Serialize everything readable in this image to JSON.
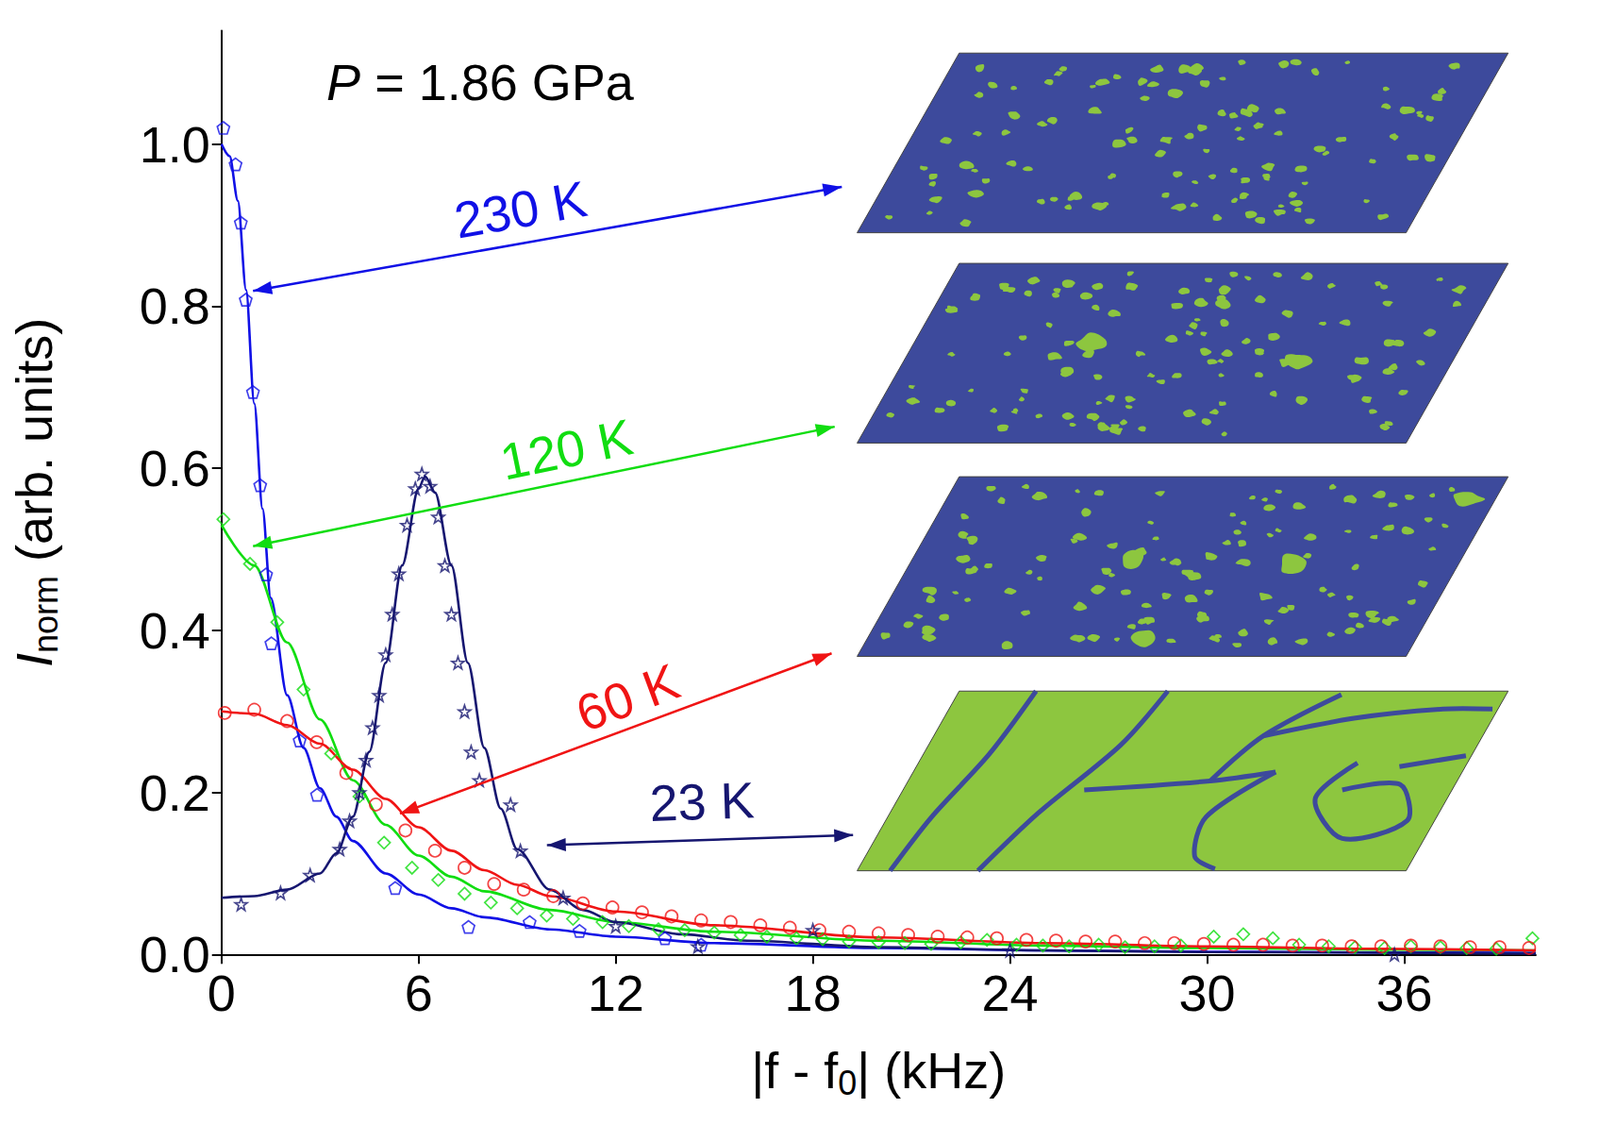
{
  "chart_data": {
    "type": "scatter",
    "title": "P = 1.86 GPa",
    "xlabel": {
      "text": "|f - f",
      "sub": "0",
      "rest": "| (kHz)"
    },
    "ylabel": {
      "text": "I",
      "sub": "norm",
      "rest": " (arb. units)"
    },
    "xlim": [
      0,
      40
    ],
    "ylim": [
      0,
      1.14
    ],
    "xticks": [
      0,
      6,
      12,
      18,
      24,
      30,
      36
    ],
    "yticks": [
      {
        "value": 0,
        "label": "0.0"
      },
      {
        "value": 0.2,
        "label": "0.2"
      },
      {
        "value": 0.4,
        "label": "0.4"
      },
      {
        "value": 0.6,
        "label": "0.6"
      },
      {
        "value": 0.8,
        "label": "0.8"
      },
      {
        "value": 1,
        "label": "1.0"
      }
    ],
    "grid": false,
    "series": [
      {
        "name": "230 K",
        "color": "#1010e6",
        "marker": "pentagon",
        "line_style": "solid",
        "x": [
          0.06,
          0.43,
          0.59,
          0.74,
          0.96,
          1.18,
          1.36,
          1.52,
          2.38,
          2.91,
          5.29,
          7.52,
          9.38,
          10.9,
          13.5,
          14.6
        ],
        "values": [
          1.02,
          0.975,
          0.903,
          0.808,
          0.694,
          0.579,
          0.469,
          0.384,
          0.264,
          0.197,
          0.082,
          0.034,
          0.04,
          0.029,
          0.02,
          0.012
        ],
        "fit_x": [
          0,
          0.25,
          0.5,
          0.75,
          1,
          1.25,
          1.5,
          2,
          2.5,
          3,
          3.5,
          4,
          5,
          6,
          7,
          8,
          10,
          12,
          15,
          20,
          25,
          30,
          35,
          40
        ],
        "fit_values": [
          1.0,
          0.985,
          0.93,
          0.82,
          0.68,
          0.55,
          0.44,
          0.32,
          0.255,
          0.205,
          0.17,
          0.14,
          0.1,
          0.074,
          0.057,
          0.046,
          0.031,
          0.022,
          0.014,
          0.008,
          0.005,
          0.0035,
          0.0025,
          0.002
        ]
      },
      {
        "name": "120 K",
        "color": "#11dd11",
        "marker": "diamond",
        "line_style": "solid",
        "x": [
          0.06,
          0.87,
          1.7,
          2.5,
          3.34,
          4.2,
          4.95,
          5.8,
          6.6,
          7.4,
          8.2,
          9.0,
          9.9,
          10.7,
          11.6,
          12.4,
          13.3,
          14.1,
          15.0,
          15.8,
          16.6,
          17.5,
          18.3,
          19.1,
          20.0,
          20.8,
          21.6,
          22.5,
          23.3,
          24.2,
          25.0,
          25.8,
          26.7,
          27.5,
          28.4,
          29.2,
          30.2,
          31.1,
          32.0,
          32.8,
          33.7,
          34.5,
          35.4,
          36.2,
          37.1,
          37.9,
          38.8,
          39.9
        ],
        "values": [
          0.537,
          0.482,
          0.41,
          0.327,
          0.248,
          0.195,
          0.138,
          0.107,
          0.092,
          0.075,
          0.064,
          0.057,
          0.048,
          0.044,
          0.04,
          0.035,
          0.031,
          0.03,
          0.027,
          0.024,
          0.022,
          0.02,
          0.019,
          0.016,
          0.015,
          0.014,
          0.013,
          0.015,
          0.018,
          0.012,
          0.011,
          0.01,
          0.012,
          0.009,
          0.01,
          0.011,
          0.022,
          0.025,
          0.02,
          0.012,
          0.01,
          0.009,
          0.008,
          0.01,
          0.009,
          0.008,
          0.007,
          0.02
        ],
        "fit_x": [
          0,
          1,
          2,
          3,
          4,
          5,
          6,
          7,
          8,
          10,
          12,
          15,
          20,
          25,
          30,
          35,
          40
        ],
        "fit_values": [
          0.53,
          0.48,
          0.385,
          0.29,
          0.215,
          0.16,
          0.122,
          0.096,
          0.078,
          0.055,
          0.04,
          0.028,
          0.017,
          0.011,
          0.008,
          0.006,
          0.005
        ]
      },
      {
        "name": "60 K",
        "color": "#f01414",
        "marker": "circle",
        "line_style": "solid",
        "x": [
          0.1,
          1.0,
          2.0,
          2.9,
          3.8,
          4.7,
          5.6,
          6.5,
          7.4,
          8.3,
          9.2,
          10.1,
          11.0,
          11.9,
          12.8,
          13.7,
          14.6,
          15.5,
          16.4,
          17.3,
          18.2,
          19.1,
          20.0,
          20.9,
          21.8,
          22.7,
          23.6,
          24.5,
          25.4,
          26.3,
          27.2,
          28.1,
          29.0,
          29.9,
          30.8,
          31.7,
          32.6,
          33.5,
          34.4,
          35.3,
          36.2,
          37.1,
          38.0,
          38.9,
          39.8
        ],
        "values": [
          0.298,
          0.302,
          0.288,
          0.262,
          0.224,
          0.185,
          0.153,
          0.128,
          0.107,
          0.087,
          0.08,
          0.072,
          0.063,
          0.058,
          0.052,
          0.047,
          0.042,
          0.04,
          0.036,
          0.033,
          0.03,
          0.028,
          0.026,
          0.024,
          0.022,
          0.021,
          0.02,
          0.018,
          0.017,
          0.016,
          0.016,
          0.014,
          0.014,
          0.013,
          0.012,
          0.012,
          0.011,
          0.011,
          0.01,
          0.01,
          0.011,
          0.01,
          0.009,
          0.009,
          0.008
        ],
        "fit_x": [
          0,
          1,
          2,
          3,
          4,
          5,
          6,
          7,
          8,
          9,
          10,
          12,
          15,
          20,
          25,
          30,
          35,
          40
        ],
        "fit_values": [
          0.3,
          0.297,
          0.283,
          0.26,
          0.228,
          0.192,
          0.157,
          0.128,
          0.104,
          0.086,
          0.072,
          0.053,
          0.036,
          0.021,
          0.014,
          0.01,
          0.007,
          0.005
        ]
      },
      {
        "name": "23 K",
        "color": "#161670",
        "marker": "star",
        "line_style": "solid",
        "x": [
          0.6,
          1.8,
          2.7,
          3.6,
          3.9,
          4.2,
          4.4,
          4.6,
          4.8,
          5.0,
          5.2,
          5.4,
          5.65,
          5.9,
          6.1,
          6.35,
          6.6,
          6.8,
          7.0,
          7.2,
          7.4,
          7.6,
          7.85,
          8.8,
          9.1,
          10.4,
          12.0,
          14.5,
          18.0,
          24.0,
          35.7
        ],
        "values": [
          0.062,
          0.076,
          0.098,
          0.13,
          0.165,
          0.2,
          0.24,
          0.28,
          0.32,
          0.37,
          0.42,
          0.47,
          0.53,
          0.575,
          0.593,
          0.578,
          0.54,
          0.48,
          0.42,
          0.36,
          0.3,
          0.25,
          0.215,
          0.185,
          0.128,
          0.07,
          0.035,
          0.01,
          0.03,
          0.005,
          0.0
        ],
        "fit_x": [
          0,
          1,
          2,
          3,
          3.5,
          4,
          4.5,
          5,
          5.5,
          6,
          6.2,
          6.5,
          7,
          7.5,
          8,
          8.5,
          9,
          10,
          11,
          12,
          14,
          16,
          20,
          25,
          30,
          40
        ],
        "fit_values": [
          0.07,
          0.072,
          0.08,
          0.1,
          0.125,
          0.17,
          0.25,
          0.36,
          0.48,
          0.575,
          0.59,
          0.57,
          0.48,
          0.36,
          0.255,
          0.18,
          0.13,
          0.08,
          0.055,
          0.04,
          0.025,
          0.017,
          0.009,
          0.005,
          0.003,
          0.001
        ]
      }
    ]
  }
}
